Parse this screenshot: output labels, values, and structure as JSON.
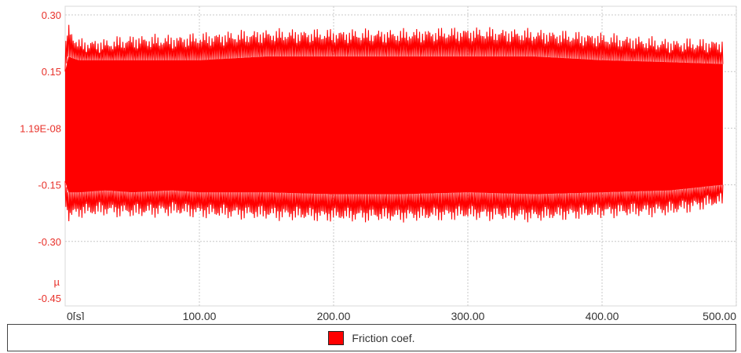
{
  "chart_data": {
    "type": "line",
    "xlabel": "",
    "ylabel": "µ",
    "xlim": [
      0,
      500
    ],
    "ylim": [
      -0.45,
      0.3
    ],
    "x_ticks": [
      {
        "value": 0,
        "label": "0[s]"
      },
      {
        "value": 100,
        "label": "100.00"
      },
      {
        "value": 200,
        "label": "200.00"
      },
      {
        "value": 300,
        "label": "300.00"
      },
      {
        "value": 400,
        "label": "400.00"
      },
      {
        "value": 500,
        "label": "500.00"
      }
    ],
    "y_ticks": [
      {
        "value": 0.3,
        "label": "0.30"
      },
      {
        "value": 0.15,
        "label": "0.15"
      },
      {
        "value": 0.0,
        "label": "1.19E-08"
      },
      {
        "value": -0.15,
        "label": "-0.15"
      },
      {
        "value": -0.3,
        "label": "-0.30"
      },
      {
        "value": -0.45,
        "label": "-0.45"
      }
    ],
    "grid": true,
    "legend_position": "bottom",
    "series": [
      {
        "name": "Friction coef.",
        "color": "#ff0000",
        "x_range": [
          0,
          490
        ],
        "envelope": {
          "x": [
            0,
            2,
            10,
            30,
            50,
            80,
            100,
            150,
            200,
            250,
            300,
            350,
            400,
            450,
            490
          ],
          "upper": [
            0.2,
            0.26,
            0.22,
            0.22,
            0.23,
            0.23,
            0.235,
            0.245,
            0.245,
            0.245,
            0.25,
            0.245,
            0.235,
            0.22,
            0.22
          ],
          "lower": [
            -0.18,
            -0.23,
            -0.22,
            -0.215,
            -0.22,
            -0.215,
            -0.22,
            -0.225,
            -0.23,
            -0.23,
            -0.225,
            -0.23,
            -0.22,
            -0.215,
            -0.19
          ],
          "core_upper": [
            0.15,
            0.19,
            0.18,
            0.18,
            0.18,
            0.18,
            0.18,
            0.19,
            0.19,
            0.19,
            0.19,
            0.19,
            0.18,
            0.175,
            0.17
          ],
          "core_lower": [
            -0.14,
            -0.17,
            -0.17,
            -0.165,
            -0.17,
            -0.165,
            -0.17,
            -0.17,
            -0.175,
            -0.175,
            -0.17,
            -0.175,
            -0.17,
            -0.165,
            -0.15
          ]
        }
      }
    ]
  }
}
